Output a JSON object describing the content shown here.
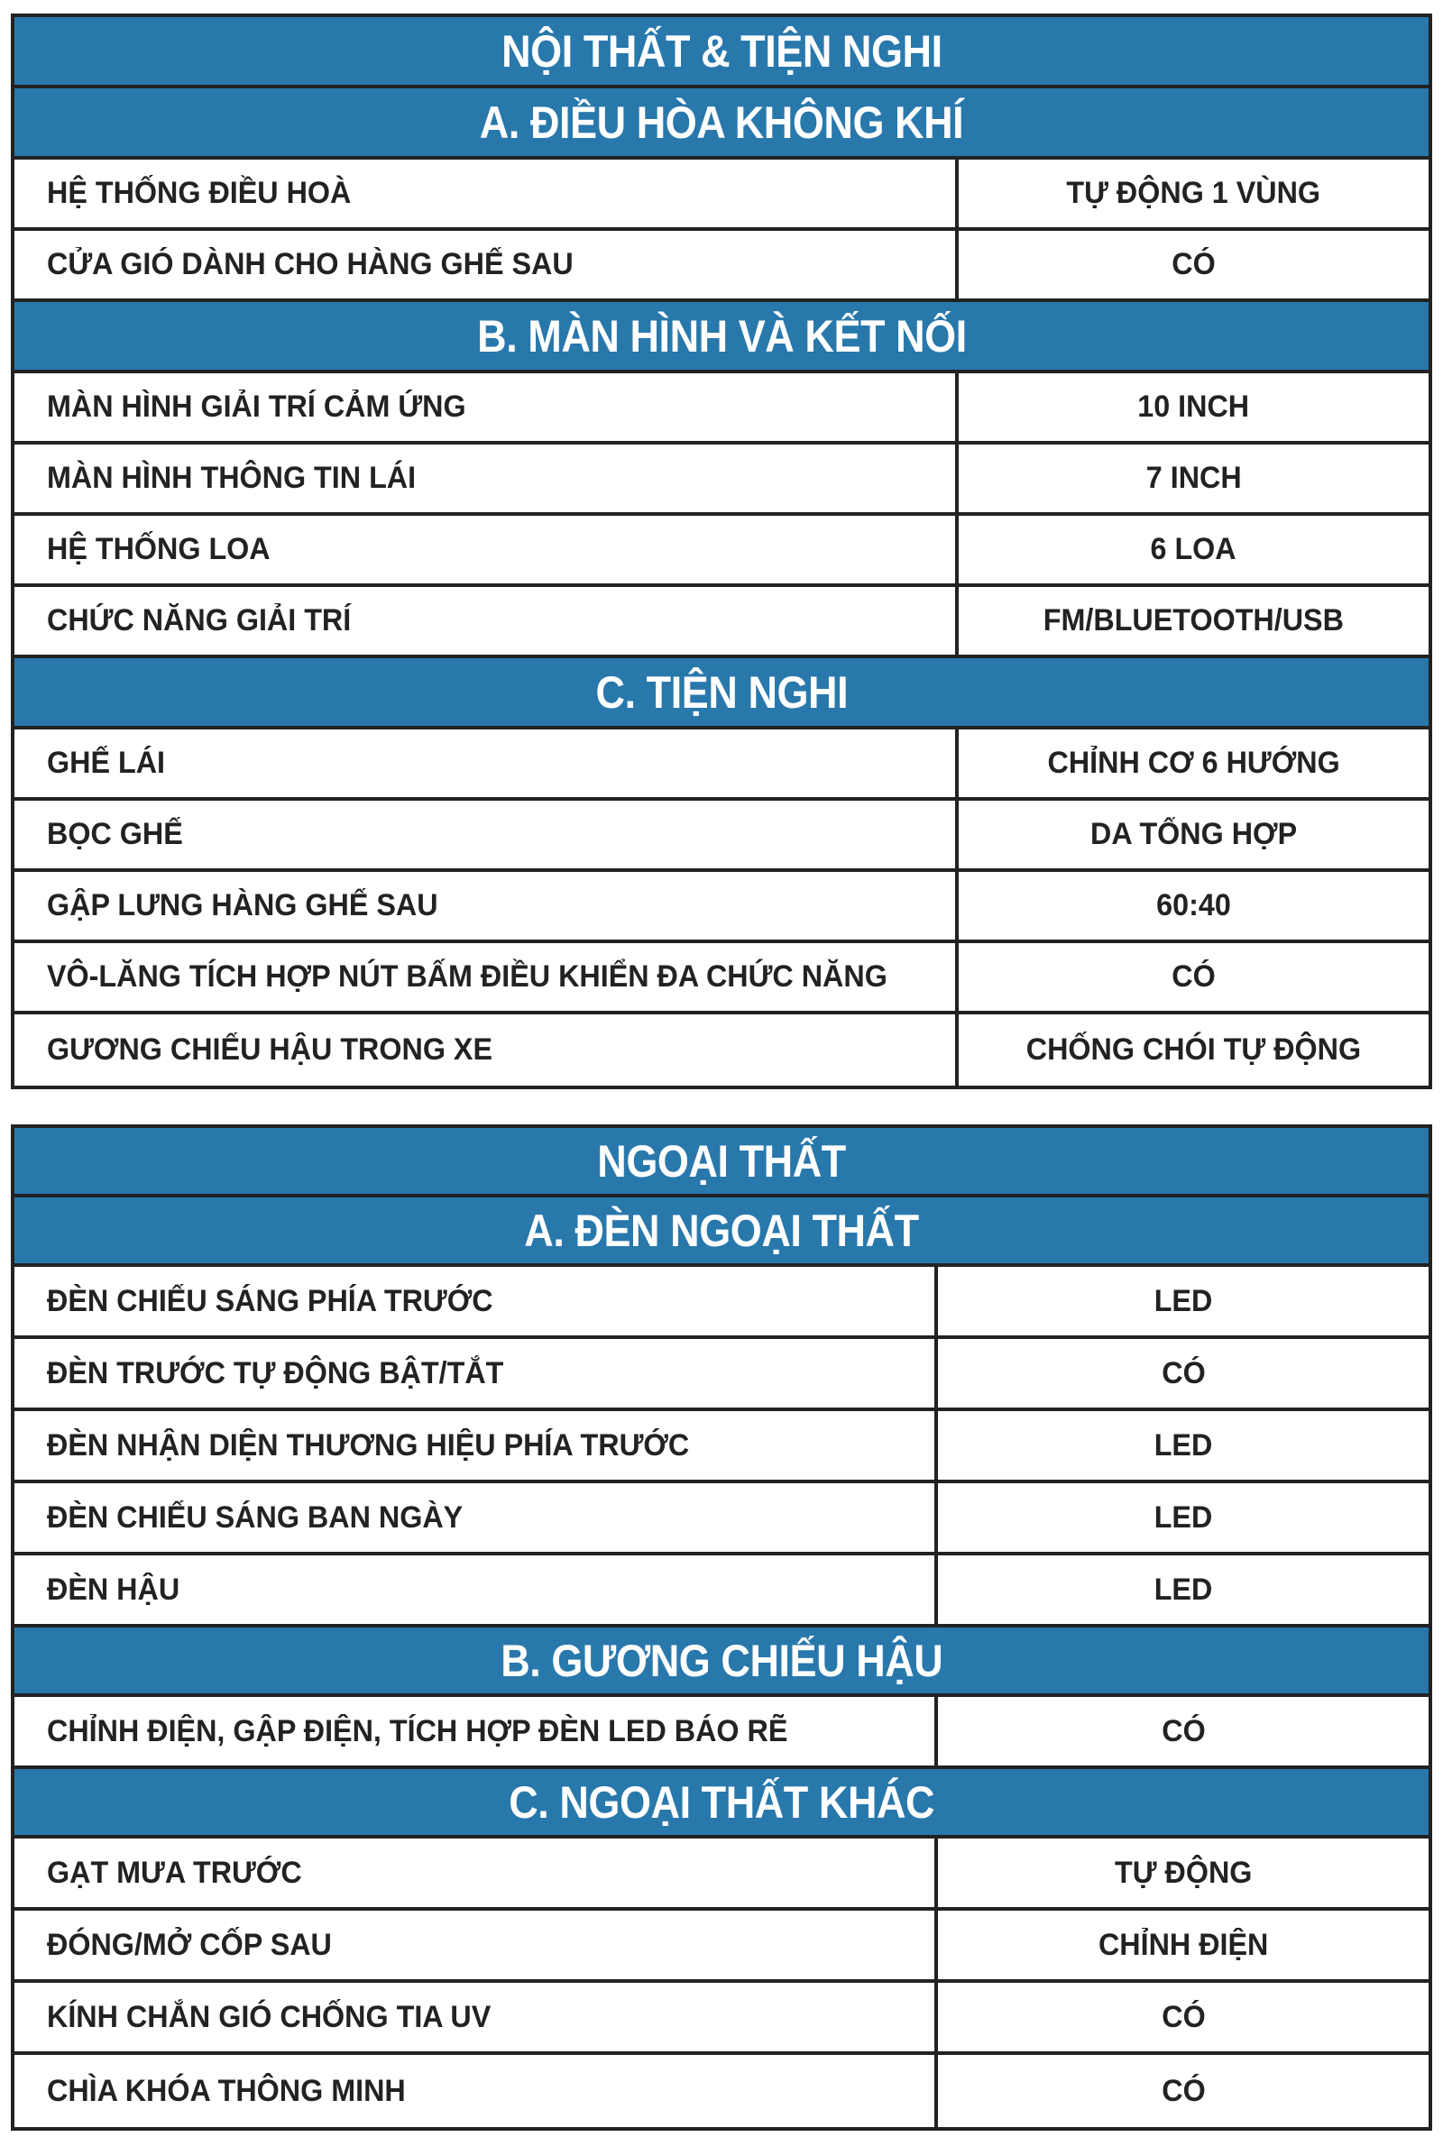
{
  "colors": {
    "header_bg": "#2878ac",
    "header_text": "#ffffff",
    "border": "#222222"
  },
  "tables": [
    {
      "title": "NỘI THẤT & TIỆN NGHI",
      "sections": [
        {
          "title": "A. ĐIỀU HÒA KHÔNG KHÍ",
          "rows": [
            {
              "label": "HỆ THỐNG ĐIỀU HOÀ",
              "value": "TỰ ĐỘNG 1 VÙNG"
            },
            {
              "label": "CỬA GIÓ DÀNH CHO HÀNG GHẾ SAU",
              "value": "CÓ"
            }
          ]
        },
        {
          "title": "B. MÀN HÌNH VÀ KẾT NỐI",
          "rows": [
            {
              "label": "MÀN HÌNH GIẢI TRÍ CẢM ỨNG",
              "value": "10 INCH"
            },
            {
              "label": "MÀN HÌNH THÔNG TIN LÁI",
              "value": "7 INCH"
            },
            {
              "label": "HỆ THỐNG LOA",
              "value": "6 LOA"
            },
            {
              "label": "CHỨC NĂNG GIẢI TRÍ",
              "value": "FM/BLUETOOTH/USB"
            }
          ]
        },
        {
          "title": "C. TIỆN NGHI",
          "rows": [
            {
              "label": "GHẾ LÁI",
              "value": "CHỈNH CƠ 6 HƯỚNG"
            },
            {
              "label": "BỌC GHẾ",
              "value": "DA TỔNG HỢP"
            },
            {
              "label": "GẬP LƯNG HÀNG GHẾ SAU",
              "value": "60:40"
            },
            {
              "label": "VÔ-LĂNG TÍCH HỢP NÚT BẤM ĐIỀU KHIỂN ĐA CHỨC NĂNG",
              "value": "CÓ"
            },
            {
              "label": "GƯƠNG CHIẾU HẬU TRONG XE",
              "value": "CHỐNG CHÓI TỰ ĐỘNG"
            }
          ]
        }
      ]
    },
    {
      "title": "NGOẠI THẤT",
      "sections": [
        {
          "title": "A. ĐÈN NGOẠI THẤT",
          "rows": [
            {
              "label": "ĐÈN CHIẾU SÁNG PHÍA TRƯỚC",
              "value": "LED"
            },
            {
              "label": "ĐÈN TRƯỚC TỰ ĐỘNG BẬT/TẮT",
              "value": "CÓ"
            },
            {
              "label": "ĐÈN NHẬN DIỆN THƯƠNG HIỆU PHÍA TRƯỚC",
              "value": "LED"
            },
            {
              "label": "ĐÈN CHIẾU SÁNG BAN NGÀY",
              "value": "LED"
            },
            {
              "label": "ĐÈN HẬU",
              "value": "LED"
            }
          ]
        },
        {
          "title": "B. GƯƠNG CHIẾU HẬU",
          "rows": [
            {
              "label": "CHỈNH ĐIỆN, GẬP ĐIỆN, TÍCH HỢP ĐÈN LED BÁO RẼ",
              "value": "CÓ"
            }
          ]
        },
        {
          "title": "C. NGOẠI THẤT KHÁC",
          "rows": [
            {
              "label": "GẠT MƯA TRƯỚC",
              "value": "TỰ ĐỘNG"
            },
            {
              "label": "ĐÓNG/MỞ CỐP SAU",
              "value": "CHỈNH ĐIỆN"
            },
            {
              "label": "KÍNH CHẮN GIÓ CHỐNG TIA UV",
              "value": "CÓ"
            },
            {
              "label": "CHÌA KHÓA THÔNG MINH",
              "value": "CÓ"
            }
          ]
        }
      ]
    }
  ]
}
